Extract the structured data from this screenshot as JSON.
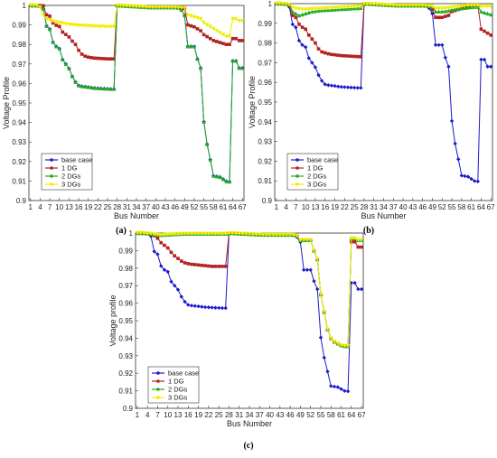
{
  "chart_data": [
    {
      "type": "line",
      "panel_label": "(a)",
      "xlabel": "Bus Number",
      "ylabel": "Voltage Profile",
      "ylim": [
        0.9,
        1.0
      ],
      "yticks": [
        "0.9",
        "0.91",
        "0.92",
        "0.93",
        "0.94",
        "0.95",
        "0.96",
        "0.97",
        "0.98",
        "0.99",
        "1"
      ],
      "xticks": [
        1,
        4,
        7,
        10,
        13,
        16,
        19,
        22,
        25,
        28,
        31,
        34,
        37,
        40,
        43,
        46,
        49,
        52,
        55,
        58,
        61,
        64,
        67
      ],
      "legend": "bottom-left",
      "series": [
        {
          "name": "base case",
          "color": "#1a1acc",
          "marker": "diamond",
          "values": [
            1.0,
            1.0,
            0.9999,
            0.9997,
            0.9983,
            0.9895,
            0.9879,
            0.9812,
            0.979,
            0.9779,
            0.9723,
            0.97,
            0.9677,
            0.9637,
            0.9608,
            0.959,
            0.9586,
            0.9584,
            0.9582,
            0.9579,
            0.9577,
            0.9576,
            0.9575,
            0.9574,
            0.9573,
            0.9572,
            0.9572,
            0.9999,
            0.9999,
            0.9998,
            0.9997,
            0.9996,
            0.9995,
            0.9994,
            0.9993,
            0.9992,
            0.9991,
            0.999,
            0.999,
            0.999,
            0.999,
            0.999,
            0.999,
            0.999,
            0.999,
            0.999,
            0.9988,
            0.9977,
            0.9949,
            0.979,
            0.979,
            0.979,
            0.9726,
            0.968,
            0.9404,
            0.9289,
            0.921,
            0.9127,
            0.9124,
            0.9121,
            0.911,
            0.9099,
            0.9097,
            0.9716,
            0.9716,
            0.968,
            0.968
          ]
        },
        {
          "name": "1 DG",
          "color": "#b22222",
          "marker": "square",
          "values": [
            1.0,
            1.0,
            0.9999,
            0.9999,
            0.9998,
            0.9952,
            0.9945,
            0.991,
            0.9898,
            0.9892,
            0.9863,
            0.9851,
            0.9838,
            0.9817,
            0.98,
            0.977,
            0.975,
            0.974,
            0.9735,
            0.9732,
            0.973,
            0.9729,
            0.9728,
            0.9727,
            0.9726,
            0.9726,
            0.9726,
            0.9999,
            0.9999,
            0.9998,
            0.9997,
            0.9996,
            0.9995,
            0.9994,
            0.9993,
            0.9992,
            0.9991,
            0.999,
            0.999,
            0.999,
            0.999,
            0.999,
            0.999,
            0.999,
            0.999,
            0.999,
            0.9989,
            0.9988,
            0.9985,
            0.99,
            0.9895,
            0.989,
            0.988,
            0.987,
            0.985,
            0.984,
            0.983,
            0.982,
            0.9815,
            0.981,
            0.9805,
            0.98,
            0.98,
            0.983,
            0.983,
            0.982,
            0.982
          ]
        },
        {
          "name": "2 DGs",
          "color": "#22aa22",
          "marker": "triangle",
          "values": [
            1.0,
            1.0,
            0.9999,
            0.9997,
            0.9983,
            0.9895,
            0.9879,
            0.9812,
            0.979,
            0.9779,
            0.9723,
            0.97,
            0.9677,
            0.9637,
            0.9608,
            0.959,
            0.9586,
            0.9584,
            0.9582,
            0.9579,
            0.9577,
            0.9576,
            0.9575,
            0.9574,
            0.9573,
            0.9572,
            0.9572,
            0.9999,
            0.9999,
            0.9998,
            0.9997,
            0.9996,
            0.9995,
            0.9994,
            0.9993,
            0.9992,
            0.9991,
            0.999,
            0.999,
            0.999,
            0.999,
            0.999,
            0.999,
            0.999,
            0.999,
            0.999,
            0.9988,
            0.9977,
            0.9949,
            0.979,
            0.979,
            0.979,
            0.9726,
            0.968,
            0.9404,
            0.9289,
            0.921,
            0.9127,
            0.9124,
            0.9121,
            0.911,
            0.9099,
            0.9097,
            0.9716,
            0.9716,
            0.968,
            0.968
          ]
        },
        {
          "name": "3 DGs",
          "color": "#eeee00",
          "marker": "triangle-down",
          "values": [
            1.0,
            1.0,
            0.9999,
            0.999,
            0.995,
            0.993,
            0.9925,
            0.9918,
            0.9914,
            0.9911,
            0.9908,
            0.9905,
            0.9902,
            0.99,
            0.9898,
            0.9897,
            0.9896,
            0.9895,
            0.9894,
            0.9893,
            0.9892,
            0.9892,
            0.9891,
            0.9891,
            0.989,
            0.989,
            0.989,
            0.9999,
            0.9999,
            0.9998,
            0.9997,
            0.9996,
            0.9995,
            0.9994,
            0.9993,
            0.9992,
            0.9991,
            0.999,
            0.999,
            0.999,
            0.999,
            0.999,
            0.999,
            0.999,
            0.999,
            0.999,
            0.9989,
            0.9988,
            0.9986,
            0.995,
            0.9945,
            0.994,
            0.9935,
            0.993,
            0.991,
            0.99,
            0.989,
            0.988,
            0.987,
            0.986,
            0.985,
            0.984,
            0.984,
            0.993,
            0.993,
            0.992,
            0.992
          ]
        }
      ]
    },
    {
      "type": "line",
      "panel_label": "(b)",
      "xlabel": "Bus Number",
      "ylabel": "Voltage Profile",
      "ylim": [
        0.9,
        1.0
      ],
      "yticks": [
        "0.9",
        "0.91",
        "0.92",
        "0.93",
        "0.94",
        "0.95",
        "0.96",
        "0.97",
        "0.98",
        "0.99",
        "1"
      ],
      "xticks": [
        1,
        4,
        7,
        10,
        13,
        16,
        19,
        22,
        25,
        28,
        31,
        34,
        37,
        40,
        43,
        46,
        49,
        52,
        55,
        58,
        61,
        64,
        67
      ],
      "legend": "bottom-left",
      "series": [
        {
          "name": "base case",
          "color": "#1a1acc",
          "marker": "diamond",
          "values": [
            1.0,
            1.0,
            0.9999,
            0.9997,
            0.9983,
            0.9895,
            0.9879,
            0.9812,
            0.979,
            0.9779,
            0.9723,
            0.97,
            0.9677,
            0.9637,
            0.9608,
            0.959,
            0.9586,
            0.9584,
            0.9582,
            0.9579,
            0.9577,
            0.9576,
            0.9575,
            0.9574,
            0.9573,
            0.9572,
            0.9572,
            0.9999,
            0.9999,
            0.9998,
            0.9997,
            0.9996,
            0.9995,
            0.9994,
            0.9993,
            0.9992,
            0.9991,
            0.999,
            0.999,
            0.999,
            0.999,
            0.999,
            0.999,
            0.999,
            0.999,
            0.999,
            0.9988,
            0.9977,
            0.9949,
            0.979,
            0.979,
            0.979,
            0.9726,
            0.968,
            0.9404,
            0.9289,
            0.921,
            0.9127,
            0.9124,
            0.9121,
            0.911,
            0.9099,
            0.9097,
            0.9716,
            0.9716,
            0.968,
            0.968
          ]
        },
        {
          "name": "1 DG",
          "color": "#b22222",
          "marker": "square",
          "values": [
            1.0,
            1.0,
            0.9999,
            0.9998,
            0.999,
            0.994,
            0.993,
            0.9895,
            0.988,
            0.987,
            0.984,
            0.982,
            0.98,
            0.977,
            0.9755,
            0.975,
            0.9745,
            0.9742,
            0.974,
            0.9738,
            0.9736,
            0.9735,
            0.9734,
            0.9733,
            0.9732,
            0.9731,
            0.973,
            0.9999,
            0.9999,
            0.9998,
            0.9997,
            0.9996,
            0.9995,
            0.9994,
            0.9993,
            0.9992,
            0.9991,
            0.999,
            0.999,
            0.999,
            0.999,
            0.999,
            0.999,
            0.999,
            0.999,
            0.999,
            0.9989,
            0.9985,
            0.997,
            0.993,
            0.993,
            0.993,
            0.9935,
            0.994,
            0.996,
            0.9965,
            0.997,
            0.9975,
            0.998,
            0.9985,
            0.999,
            0.999,
            0.999,
            0.987,
            0.986,
            0.985,
            0.984
          ]
        },
        {
          "name": "2 DGs",
          "color": "#22aa22",
          "marker": "triangle",
          "values": [
            1.0,
            1.0,
            0.9999,
            0.9998,
            0.9995,
            0.996,
            0.995,
            0.994,
            0.9945,
            0.995,
            0.9955,
            0.996,
            0.9962,
            0.9965,
            0.9966,
            0.9967,
            0.9968,
            0.9969,
            0.997,
            0.9971,
            0.9972,
            0.9973,
            0.9974,
            0.9975,
            0.9976,
            0.9977,
            0.9978,
            0.9999,
            0.9999,
            0.9998,
            0.9997,
            0.9996,
            0.9995,
            0.9994,
            0.9993,
            0.9992,
            0.9991,
            0.999,
            0.999,
            0.999,
            0.999,
            0.999,
            0.999,
            0.999,
            0.999,
            0.999,
            0.9989,
            0.9988,
            0.9985,
            0.996,
            0.996,
            0.996,
            0.9962,
            0.9965,
            0.997,
            0.9972,
            0.9974,
            0.9976,
            0.9978,
            0.998,
            0.9982,
            0.9984,
            0.9984,
            0.996,
            0.9955,
            0.995,
            0.9945
          ]
        },
        {
          "name": "3 DGs",
          "color": "#eeee00",
          "marker": "triangle-down",
          "values": [
            1.0,
            1.0,
            0.9999,
            0.9998,
            0.9995,
            0.998,
            0.9975,
            0.9972,
            0.997,
            0.997,
            0.9971,
            0.9972,
            0.9973,
            0.9974,
            0.9975,
            0.9976,
            0.9977,
            0.9978,
            0.9979,
            0.998,
            0.9981,
            0.9982,
            0.9983,
            0.9984,
            0.9985,
            0.9986,
            0.9987,
            0.9999,
            0.9999,
            0.9998,
            0.9997,
            0.9996,
            0.9995,
            0.9994,
            0.9993,
            0.9992,
            0.9991,
            0.999,
            0.999,
            0.999,
            0.999,
            0.999,
            0.999,
            0.999,
            0.999,
            0.999,
            0.9989,
            0.9988,
            0.9986,
            0.9975,
            0.9975,
            0.9975,
            0.9976,
            0.9978,
            0.998,
            0.9982,
            0.9984,
            0.9986,
            0.9988,
            0.999,
            0.999,
            0.999,
            0.999,
            0.9985,
            0.9985,
            0.9985,
            0.9985
          ]
        }
      ]
    },
    {
      "type": "line",
      "panel_label": "(c)",
      "xlabel": "Bus Number",
      "ylabel": "Voltage profile",
      "ylim": [
        0.9,
        1.0
      ],
      "yticks": [
        "0.9",
        "0.91",
        "0.92",
        "0.93",
        "0.94",
        "0.95",
        "0.96",
        "0.97",
        "0.98",
        "0.99",
        "1"
      ],
      "xticks": [
        1,
        4,
        7,
        10,
        13,
        16,
        19,
        22,
        25,
        28,
        31,
        34,
        37,
        40,
        43,
        46,
        49,
        52,
        55,
        58,
        61,
        64,
        67
      ],
      "legend": "bottom-left",
      "series": [
        {
          "name": "base case",
          "color": "#1a1acc",
          "marker": "diamond",
          "values": [
            1.0,
            1.0,
            0.9999,
            0.9997,
            0.9983,
            0.9895,
            0.9879,
            0.9812,
            0.979,
            0.9779,
            0.9723,
            0.97,
            0.9677,
            0.9637,
            0.9608,
            0.959,
            0.9586,
            0.9584,
            0.9582,
            0.9579,
            0.9577,
            0.9576,
            0.9575,
            0.9574,
            0.9573,
            0.9572,
            0.9572,
            0.9999,
            0.9999,
            0.9998,
            0.9997,
            0.9996,
            0.9995,
            0.9994,
            0.9993,
            0.9992,
            0.9991,
            0.999,
            0.999,
            0.999,
            0.999,
            0.999,
            0.999,
            0.999,
            0.999,
            0.999,
            0.9988,
            0.9977,
            0.9949,
            0.979,
            0.979,
            0.979,
            0.9726,
            0.968,
            0.9404,
            0.9289,
            0.921,
            0.9127,
            0.9124,
            0.9121,
            0.911,
            0.9099,
            0.9097,
            0.9716,
            0.9716,
            0.968,
            0.968
          ]
        },
        {
          "name": "1 DG",
          "color": "#b22222",
          "marker": "square",
          "values": [
            1.0,
            1.0,
            0.9999,
            0.9998,
            0.9995,
            0.9985,
            0.997,
            0.9945,
            0.993,
            0.9915,
            0.989,
            0.987,
            0.9855,
            0.984,
            0.983,
            0.9825,
            0.9822,
            0.982,
            0.9818,
            0.9816,
            0.9814,
            0.9812,
            0.981,
            0.981,
            0.981,
            0.981,
            0.981,
            0.9999,
            0.9999,
            0.9998,
            0.9997,
            0.9996,
            0.9995,
            0.9994,
            0.9993,
            0.9992,
            0.9991,
            0.999,
            0.999,
            0.999,
            0.999,
            0.999,
            0.999,
            0.999,
            0.999,
            0.999,
            0.9989,
            0.9985,
            0.996,
            0.996,
            0.996,
            0.996,
            0.99,
            0.985,
            0.965,
            0.955,
            0.945,
            0.94,
            0.938,
            0.937,
            0.936,
            0.9355,
            0.9355,
            0.995,
            0.995,
            0.992,
            0.992
          ]
        },
        {
          "name": "2 DGs",
          "color": "#22aa22",
          "marker": "triangle",
          "values": [
            1.0,
            1.0,
            0.9999,
            0.9998,
            0.9996,
            0.9992,
            0.999,
            0.9988,
            0.999,
            0.9991,
            0.9992,
            0.9993,
            0.9994,
            0.9995,
            0.9996,
            0.9996,
            0.9996,
            0.9996,
            0.9996,
            0.9996,
            0.9996,
            0.9996,
            0.9996,
            0.9996,
            0.9996,
            0.9996,
            0.9996,
            0.9999,
            0.9999,
            0.9998,
            0.9997,
            0.9996,
            0.9995,
            0.9994,
            0.9993,
            0.9992,
            0.9991,
            0.999,
            0.999,
            0.999,
            0.999,
            0.999,
            0.999,
            0.999,
            0.999,
            0.999,
            0.9989,
            0.9985,
            0.996,
            0.996,
            0.996,
            0.996,
            0.99,
            0.985,
            0.965,
            0.955,
            0.945,
            0.94,
            0.938,
            0.937,
            0.936,
            0.9355,
            0.9355,
            0.997,
            0.997,
            0.996,
            0.996
          ]
        },
        {
          "name": "3 DGs",
          "color": "#eeee00",
          "marker": "triangle-down",
          "values": [
            1.0,
            1.0,
            0.9999,
            0.9998,
            0.9996,
            0.9992,
            0.999,
            0.9988,
            0.999,
            0.9991,
            0.9992,
            0.9993,
            0.9994,
            0.9995,
            0.9996,
            0.9996,
            0.9996,
            0.9996,
            0.9996,
            0.9996,
            0.9996,
            0.9996,
            0.9996,
            0.9996,
            0.9996,
            0.9996,
            0.9996,
            0.9999,
            0.9999,
            0.9998,
            0.9997,
            0.9996,
            0.9995,
            0.9994,
            0.9993,
            0.9992,
            0.9991,
            0.999,
            0.999,
            0.999,
            0.999,
            0.999,
            0.999,
            0.999,
            0.999,
            0.999,
            0.9989,
            0.9985,
            0.996,
            0.996,
            0.996,
            0.996,
            0.99,
            0.985,
            0.965,
            0.955,
            0.945,
            0.94,
            0.938,
            0.937,
            0.936,
            0.9355,
            0.9355,
            0.997,
            0.997,
            0.996,
            0.996
          ]
        }
      ]
    }
  ]
}
